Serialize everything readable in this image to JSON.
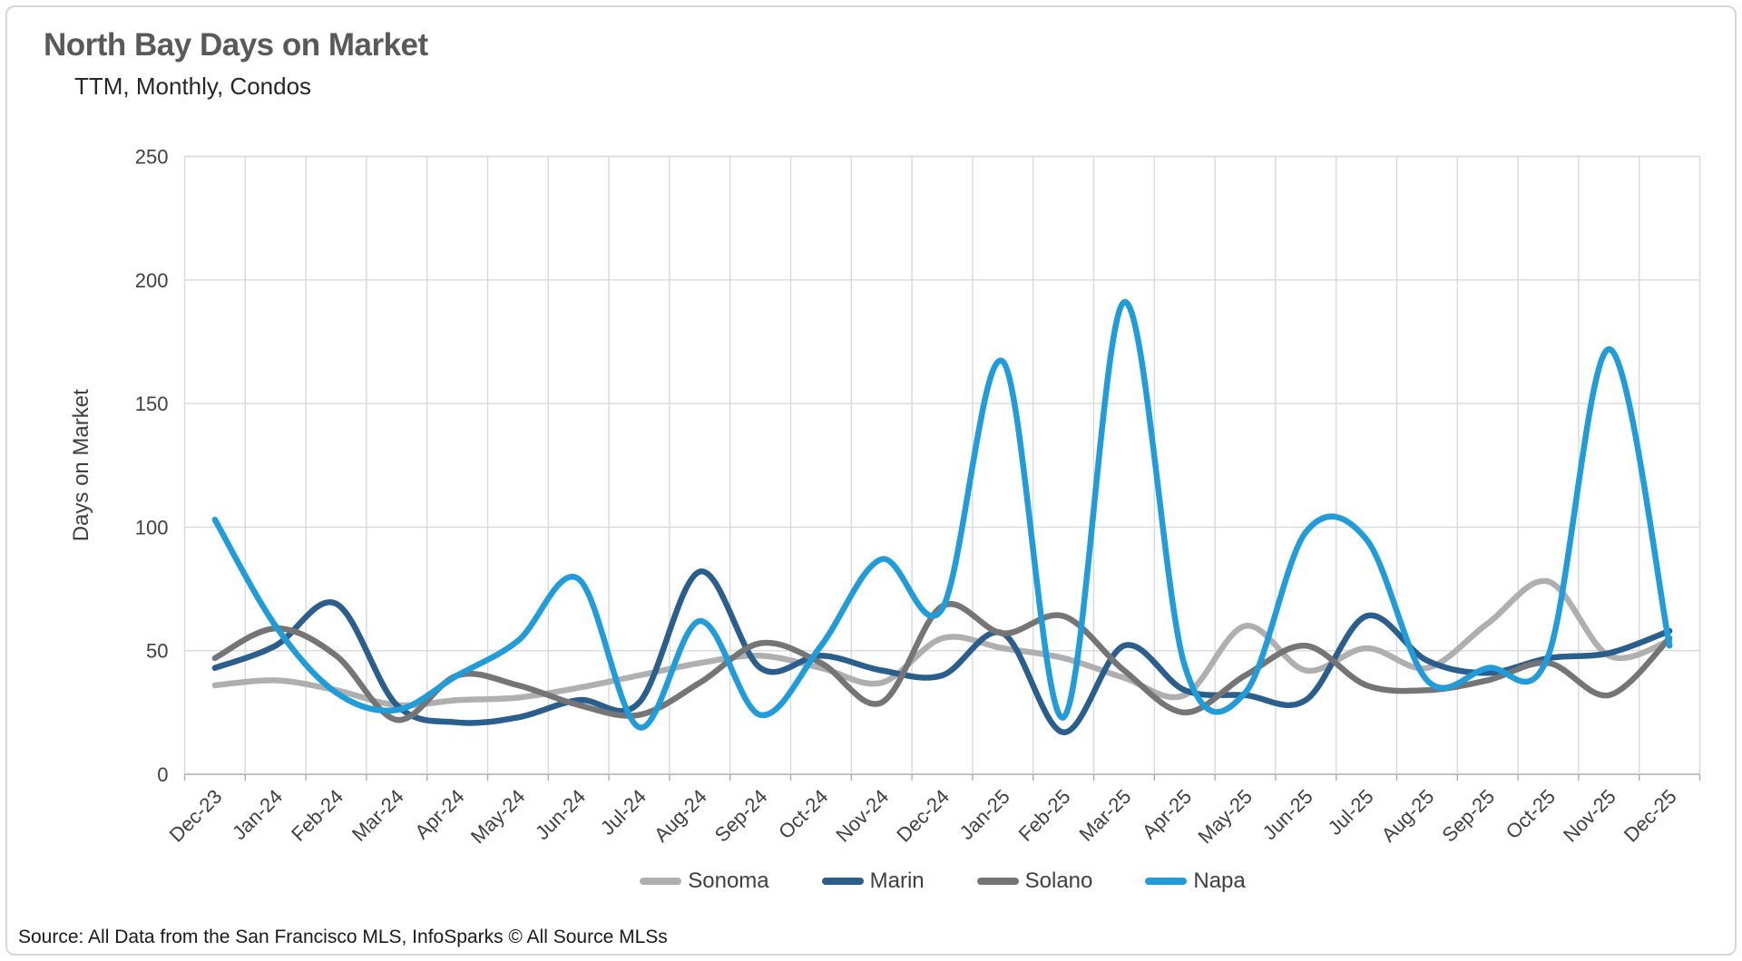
{
  "header": {
    "title": "North Bay Days on Market",
    "subtitle": "TTM, Monthly, Condos"
  },
  "source_note": "Source: All Data from the San Francisco MLS, InfoSparks © All Source MLSs",
  "colors": {
    "title_text": "#595959",
    "axis_text": "#404040",
    "gridline": "#d9d9d9",
    "axis_line": "#adadad",
    "card_border": "#d6d6d6"
  },
  "chart_data": {
    "type": "line",
    "title": "North Bay Days on Market",
    "subtitle": "TTM, Monthly, Condos",
    "xlabel": "",
    "ylabel": "Days on Market",
    "ylim": [
      0,
      250
    ],
    "ytick_interval": 50,
    "grid": true,
    "smooth": true,
    "legend_position": "bottom",
    "categories": [
      "Dec-23",
      "Jan-24",
      "Feb-24",
      "Mar-24",
      "Apr-24",
      "May-24",
      "Jun-24",
      "Jul-24",
      "Aug-24",
      "Sep-24",
      "Oct-24",
      "Nov-24",
      "Dec-24",
      "Jan-25",
      "Feb-25",
      "Mar-25",
      "Apr-25",
      "May-25",
      "Jun-25",
      "Jul-25",
      "Aug-25",
      "Sep-25",
      "Oct-25",
      "Nov-25",
      "Dec-25"
    ],
    "series": [
      {
        "name": "Sonoma",
        "color": "#afafaf",
        "values": [
          36,
          38,
          34,
          28,
          30,
          31,
          35,
          40,
          45,
          48,
          43,
          37,
          55,
          51,
          47,
          39,
          32,
          60,
          42,
          51,
          43,
          61,
          78,
          48,
          54
        ]
      },
      {
        "name": "Marin",
        "color": "#2a5e8c",
        "values": [
          43,
          52,
          69,
          28,
          21,
          23,
          30,
          29,
          82,
          43,
          48,
          42,
          40,
          57,
          17,
          52,
          34,
          32,
          30,
          64,
          46,
          41,
          47,
          49,
          58
        ]
      },
      {
        "name": "Solano",
        "color": "#757575",
        "values": [
          47,
          59,
          48,
          22,
          40,
          36,
          28,
          24,
          37,
          53,
          45,
          29,
          68,
          57,
          64,
          42,
          25,
          40,
          52,
          36,
          34,
          38,
          45,
          32,
          55
        ]
      },
      {
        "name": "Napa",
        "color": "#1f9cd9",
        "values": [
          103,
          60,
          33,
          26,
          40,
          54,
          79,
          19,
          62,
          24,
          52,
          87,
          67,
          167,
          23,
          191,
          44,
          33,
          98,
          95,
          38,
          43,
          48,
          172,
          52
        ]
      }
    ]
  }
}
